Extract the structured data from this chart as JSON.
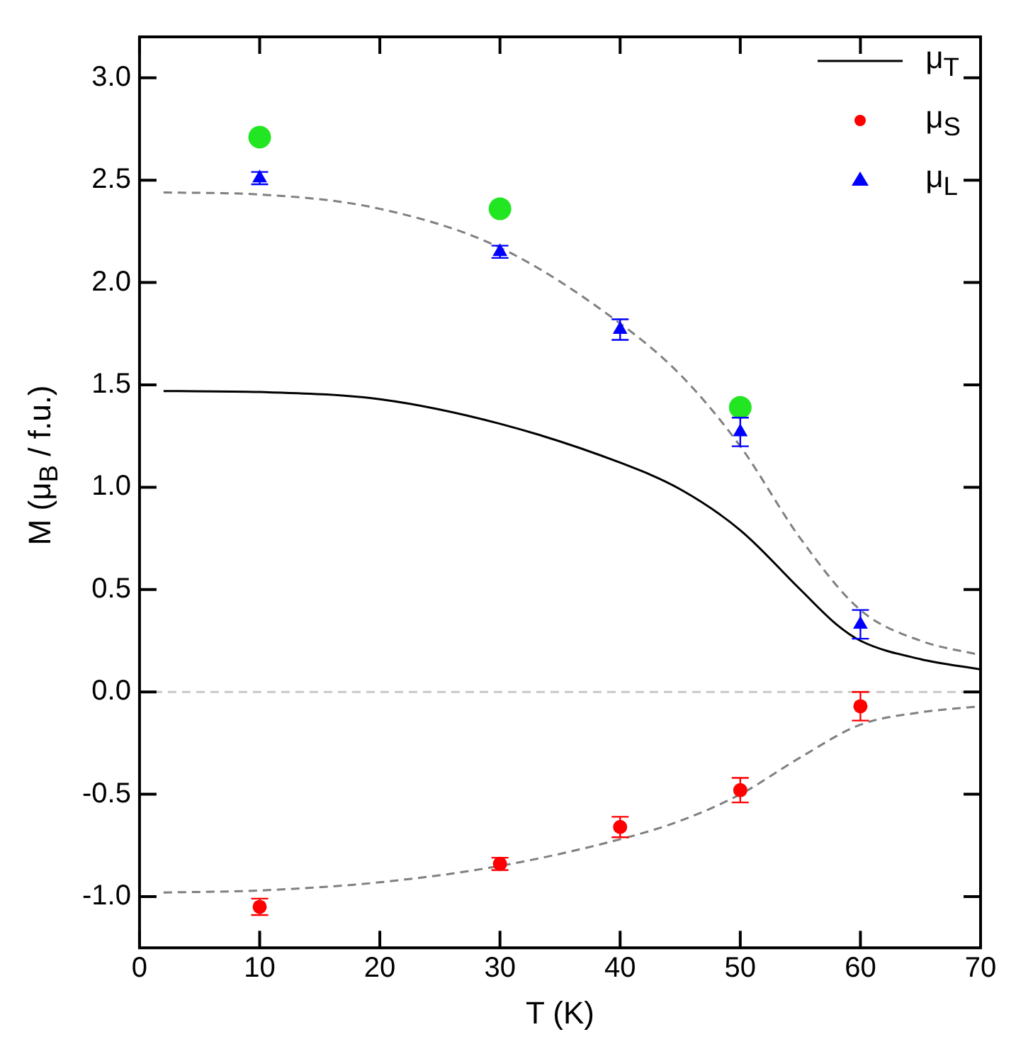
{
  "chart_data": {
    "type": "scatter",
    "xlabel": "T (K)",
    "ylabel": "M (μ$_{B}$ / f.u.)",
    "xlim": [
      0,
      70
    ],
    "xticks": [
      0,
      10,
      20,
      30,
      40,
      50,
      60,
      70
    ],
    "ylim": [
      -1.25,
      3.2
    ],
    "yticks": [
      {
        "value": -1,
        "label": "-1.0"
      },
      {
        "value": -0.5,
        "label": "-0.5"
      },
      {
        "value": 0,
        "label": "0.0"
      },
      {
        "value": 0.5,
        "label": "0.5"
      },
      {
        "value": 1,
        "label": "1.0"
      },
      {
        "value": 1.5,
        "label": "1.5"
      },
      {
        "value": 2,
        "label": "2.0"
      },
      {
        "value": 2.5,
        "label": "2.5"
      },
      {
        "value": 3,
        "label": "3.0"
      }
    ],
    "grid": false,
    "legend": "top right",
    "ref_lines": [
      {
        "axis": "y",
        "value": 0,
        "color": "#c8c8c8",
        "line_style": "dashed"
      }
    ],
    "series": [
      {
        "name": "μ$_{T}$",
        "type": "line",
        "color": "#000000",
        "marker": "none",
        "line_style": "solid",
        "x": [
          2,
          10,
          20,
          30,
          40,
          45,
          50,
          55,
          58,
          60,
          65,
          70
        ],
        "values": [
          1.47,
          1.465,
          1.43,
          1.31,
          1.12,
          0.99,
          0.79,
          0.5,
          0.33,
          0.25,
          0.16,
          0.11
        ]
      },
      {
        "type": "line",
        "color": "#808080",
        "marker": "none",
        "line_style": "dashed",
        "x": [
          2,
          10,
          20,
          30,
          40,
          45,
          50,
          55,
          60,
          65,
          70
        ],
        "values": [
          2.44,
          2.43,
          2.36,
          2.17,
          1.8,
          1.55,
          1.2,
          0.75,
          0.4,
          0.25,
          0.18
        ]
      },
      {
        "type": "line",
        "color": "#808080",
        "marker": "none",
        "line_style": "dashed",
        "x": [
          2,
          10,
          20,
          30,
          40,
          45,
          50,
          55,
          60,
          65,
          70
        ],
        "values": [
          -0.98,
          -0.97,
          -0.93,
          -0.85,
          -0.72,
          -0.63,
          -0.5,
          -0.32,
          -0.16,
          -0.1,
          -0.07
        ]
      },
      {
        "name": "μ$_{S}$",
        "color": "#ff0000",
        "marker": "circle",
        "x": [
          10,
          30,
          40,
          50,
          60
        ],
        "values": [
          -1.05,
          -0.84,
          -0.66,
          -0.48,
          -0.07
        ],
        "errors": [
          0.04,
          0.03,
          0.05,
          0.06,
          0.07
        ]
      },
      {
        "name": "μ$_{L}$",
        "color": "#0000ff",
        "marker": "triangle",
        "x": [
          10,
          30,
          40,
          50,
          60
        ],
        "values": [
          2.51,
          2.15,
          1.77,
          1.27,
          0.33
        ],
        "errors": [
          0.03,
          0.03,
          0.05,
          0.07,
          0.07
        ]
      },
      {
        "color": "#22e622",
        "marker": "circle",
        "x": [
          10,
          30,
          50
        ],
        "values": [
          2.71,
          2.36,
          1.39
        ]
      }
    ]
  }
}
